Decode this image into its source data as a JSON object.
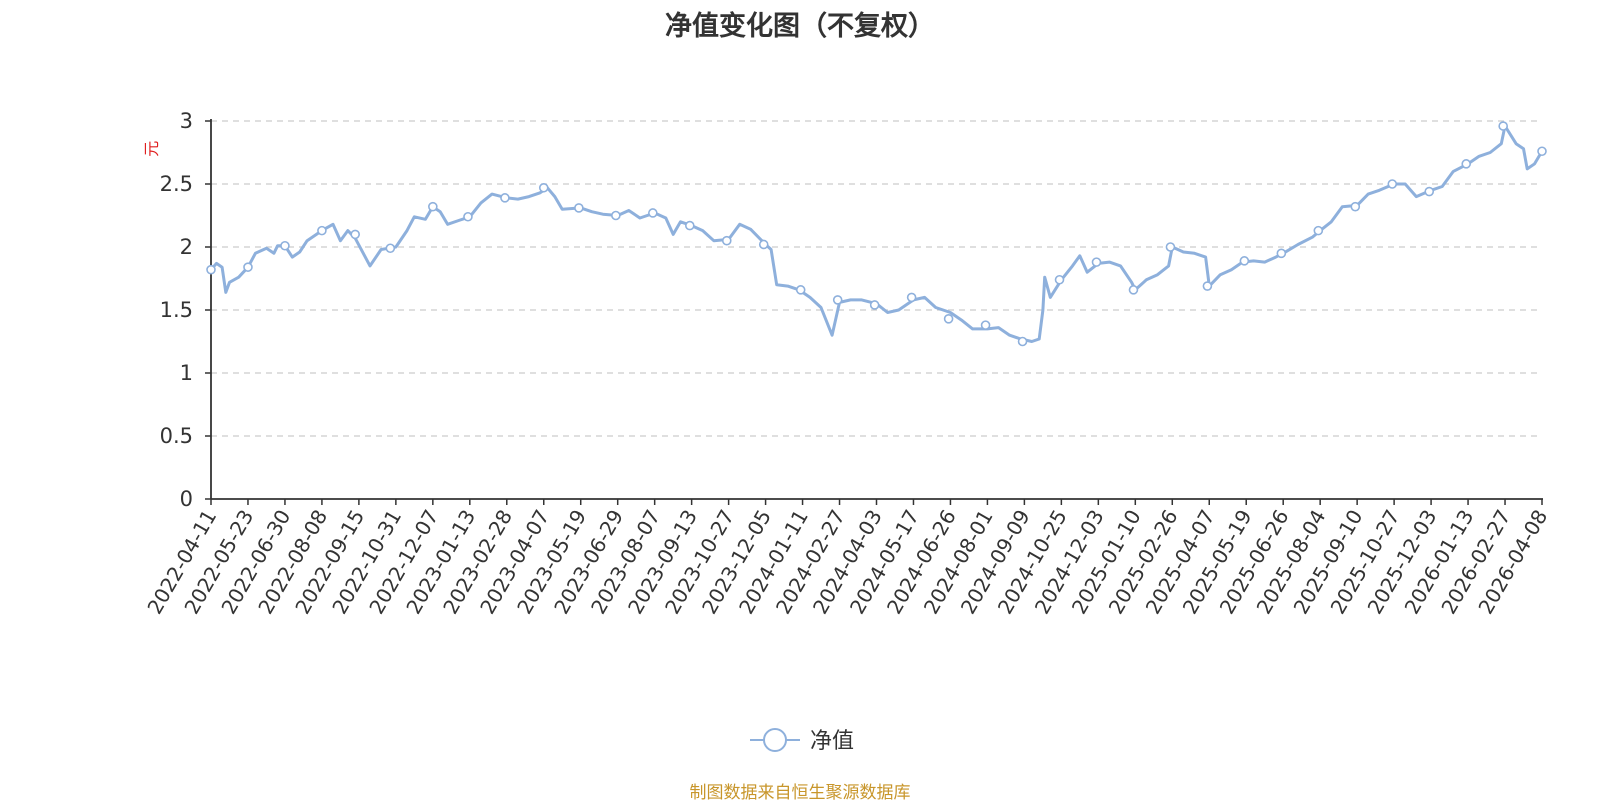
{
  "chart_data": {
    "type": "line",
    "title": "净值变化图（不复权）",
    "ylabel": "元",
    "xlabel": "",
    "ylim": [
      0,
      3
    ],
    "y_ticks": [
      "0",
      "0.5",
      "1",
      "1.5",
      "2",
      "2.5",
      "3"
    ],
    "grid": true,
    "legend_position": "bottom-center",
    "categories": [
      "2022-04-11",
      "2022-05-23",
      "2022-06-30",
      "2022-08-08",
      "2022-09-15",
      "2022-10-31",
      "2022-12-07",
      "2023-01-13",
      "2023-02-28",
      "2023-04-07",
      "2023-05-19",
      "2023-06-29",
      "2023-08-07",
      "2023-09-13",
      "2023-10-27",
      "2023-12-05",
      "2024-01-11",
      "2024-02-27",
      "2024-04-03",
      "2024-05-17",
      "2024-06-26",
      "2024-08-01",
      "2024-09-09",
      "2024-10-25",
      "2024-12-03",
      "2025-01-10",
      "2025-02-26",
      "2025-04-07",
      "2025-05-19",
      "2025-06-26",
      "2025-08-04",
      "2025-09-10",
      "2025-10-27",
      "2025-12-03",
      "2026-01-13",
      "2026-02-27",
      "2026-04-08"
    ],
    "series": [
      {
        "name": "净值",
        "color": "#8eb0dc",
        "points": [
          [
            0,
            1.82
          ],
          [
            0.15,
            1.87
          ],
          [
            0.3,
            1.84
          ],
          [
            0.4,
            1.64
          ],
          [
            0.5,
            1.72
          ],
          [
            0.75,
            1.76
          ],
          [
            1.0,
            1.84
          ],
          [
            1.2,
            1.95
          ],
          [
            1.5,
            1.99
          ],
          [
            1.7,
            1.95
          ],
          [
            1.8,
            2.01
          ],
          [
            2.0,
            2.01
          ],
          [
            2.2,
            1.92
          ],
          [
            2.4,
            1.96
          ],
          [
            2.6,
            2.05
          ],
          [
            3.0,
            2.13
          ],
          [
            3.3,
            2.18
          ],
          [
            3.5,
            2.05
          ],
          [
            3.7,
            2.13
          ],
          [
            3.9,
            2.07
          ],
          [
            4.3,
            1.85
          ],
          [
            4.6,
            1.98
          ],
          [
            5.0,
            2.0
          ],
          [
            5.3,
            2.13
          ],
          [
            5.5,
            2.24
          ],
          [
            5.8,
            2.22
          ],
          [
            6.0,
            2.32
          ],
          [
            6.2,
            2.28
          ],
          [
            6.4,
            2.18
          ],
          [
            6.7,
            2.21
          ],
          [
            7.0,
            2.24
          ],
          [
            7.3,
            2.35
          ],
          [
            7.6,
            2.42
          ],
          [
            8.0,
            2.39
          ],
          [
            8.3,
            2.38
          ],
          [
            8.6,
            2.4
          ],
          [
            8.9,
            2.43
          ],
          [
            9.1,
            2.47
          ],
          [
            9.3,
            2.4
          ],
          [
            9.5,
            2.3
          ],
          [
            10.0,
            2.31
          ],
          [
            10.3,
            2.28
          ],
          [
            10.6,
            2.26
          ],
          [
            11.0,
            2.25
          ],
          [
            11.3,
            2.29
          ],
          [
            11.6,
            2.23
          ],
          [
            12.0,
            2.27
          ],
          [
            12.3,
            2.23
          ],
          [
            12.5,
            2.1
          ],
          [
            12.7,
            2.2
          ],
          [
            13.0,
            2.17
          ],
          [
            13.3,
            2.13
          ],
          [
            13.6,
            2.05
          ],
          [
            14.0,
            2.06
          ],
          [
            14.3,
            2.18
          ],
          [
            14.6,
            2.14
          ],
          [
            15.0,
            2.02
          ],
          [
            15.15,
            1.98
          ],
          [
            15.3,
            1.7
          ],
          [
            15.6,
            1.69
          ],
          [
            15.9,
            1.66
          ],
          [
            16.2,
            1.6
          ],
          [
            16.5,
            1.52
          ],
          [
            16.8,
            1.3
          ],
          [
            17.0,
            1.56
          ],
          [
            17.3,
            1.58
          ],
          [
            17.6,
            1.58
          ],
          [
            18.0,
            1.55
          ],
          [
            18.3,
            1.48
          ],
          [
            18.6,
            1.5
          ],
          [
            19.0,
            1.58
          ],
          [
            19.3,
            1.6
          ],
          [
            19.6,
            1.52
          ],
          [
            20.0,
            1.48
          ],
          [
            20.3,
            1.42
          ],
          [
            20.6,
            1.35
          ],
          [
            21.0,
            1.35
          ],
          [
            21.3,
            1.36
          ],
          [
            21.6,
            1.3
          ],
          [
            21.9,
            1.27
          ],
          [
            22.2,
            1.25
          ],
          [
            22.4,
            1.27
          ],
          [
            22.5,
            1.5
          ],
          [
            22.55,
            1.76
          ],
          [
            22.7,
            1.6
          ],
          [
            23.0,
            1.74
          ],
          [
            23.3,
            1.85
          ],
          [
            23.5,
            1.93
          ],
          [
            23.7,
            1.8
          ],
          [
            24.0,
            1.87
          ],
          [
            24.3,
            1.88
          ],
          [
            24.6,
            1.85
          ],
          [
            24.9,
            1.72
          ],
          [
            25.0,
            1.66
          ],
          [
            25.3,
            1.74
          ],
          [
            25.6,
            1.78
          ],
          [
            25.9,
            1.85
          ],
          [
            26.0,
            2.0
          ],
          [
            26.3,
            1.96
          ],
          [
            26.6,
            1.95
          ],
          [
            26.9,
            1.92
          ],
          [
            27.0,
            1.69
          ],
          [
            27.3,
            1.78
          ],
          [
            27.6,
            1.82
          ],
          [
            27.9,
            1.88
          ],
          [
            28.2,
            1.89
          ],
          [
            28.5,
            1.88
          ],
          [
            28.8,
            1.92
          ],
          [
            29.0,
            1.95
          ],
          [
            29.4,
            2.02
          ],
          [
            29.8,
            2.08
          ],
          [
            30.0,
            2.13
          ],
          [
            30.3,
            2.2
          ],
          [
            30.6,
            2.32
          ],
          [
            31.0,
            2.33
          ],
          [
            31.3,
            2.42
          ],
          [
            31.6,
            2.45
          ],
          [
            32.0,
            2.5
          ],
          [
            32.3,
            2.5
          ],
          [
            32.6,
            2.4
          ],
          [
            33.0,
            2.45
          ],
          [
            33.3,
            2.48
          ],
          [
            33.6,
            2.6
          ],
          [
            34.0,
            2.66
          ],
          [
            34.3,
            2.72
          ],
          [
            34.6,
            2.75
          ],
          [
            34.9,
            2.82
          ],
          [
            35.0,
            2.96
          ],
          [
            35.3,
            2.82
          ],
          [
            35.5,
            2.78
          ],
          [
            35.6,
            2.62
          ],
          [
            35.8,
            2.66
          ],
          [
            36.0,
            2.76
          ]
        ],
        "markers": [
          [
            0,
            1.82
          ],
          [
            1.0,
            1.84
          ],
          [
            2.0,
            2.01
          ],
          [
            3.0,
            2.13
          ],
          [
            3.9,
            2.1
          ],
          [
            4.85,
            1.99
          ],
          [
            6.0,
            2.32
          ],
          [
            6.95,
            2.24
          ],
          [
            7.95,
            2.39
          ],
          [
            9.0,
            2.47
          ],
          [
            9.95,
            2.31
          ],
          [
            10.95,
            2.25
          ],
          [
            11.95,
            2.27
          ],
          [
            12.95,
            2.17
          ],
          [
            13.95,
            2.05
          ],
          [
            14.95,
            2.02
          ],
          [
            15.95,
            1.66
          ],
          [
            16.95,
            1.58
          ],
          [
            17.95,
            1.54
          ],
          [
            18.95,
            1.6
          ],
          [
            19.95,
            1.43
          ],
          [
            20.95,
            1.38
          ],
          [
            21.95,
            1.25
          ],
          [
            22.95,
            1.74
          ],
          [
            23.95,
            1.88
          ],
          [
            24.95,
            1.66
          ],
          [
            25.95,
            2.0
          ],
          [
            26.95,
            1.69
          ],
          [
            27.95,
            1.89
          ],
          [
            28.95,
            1.95
          ],
          [
            29.95,
            2.13
          ],
          [
            30.95,
            2.32
          ],
          [
            31.95,
            2.5
          ],
          [
            32.95,
            2.44
          ],
          [
            33.95,
            2.66
          ],
          [
            34.95,
            2.96
          ],
          [
            36.0,
            2.76
          ]
        ]
      }
    ]
  },
  "legend": {
    "label": "净值"
  },
  "source_note": "制图数据来自恒生聚源数据库"
}
